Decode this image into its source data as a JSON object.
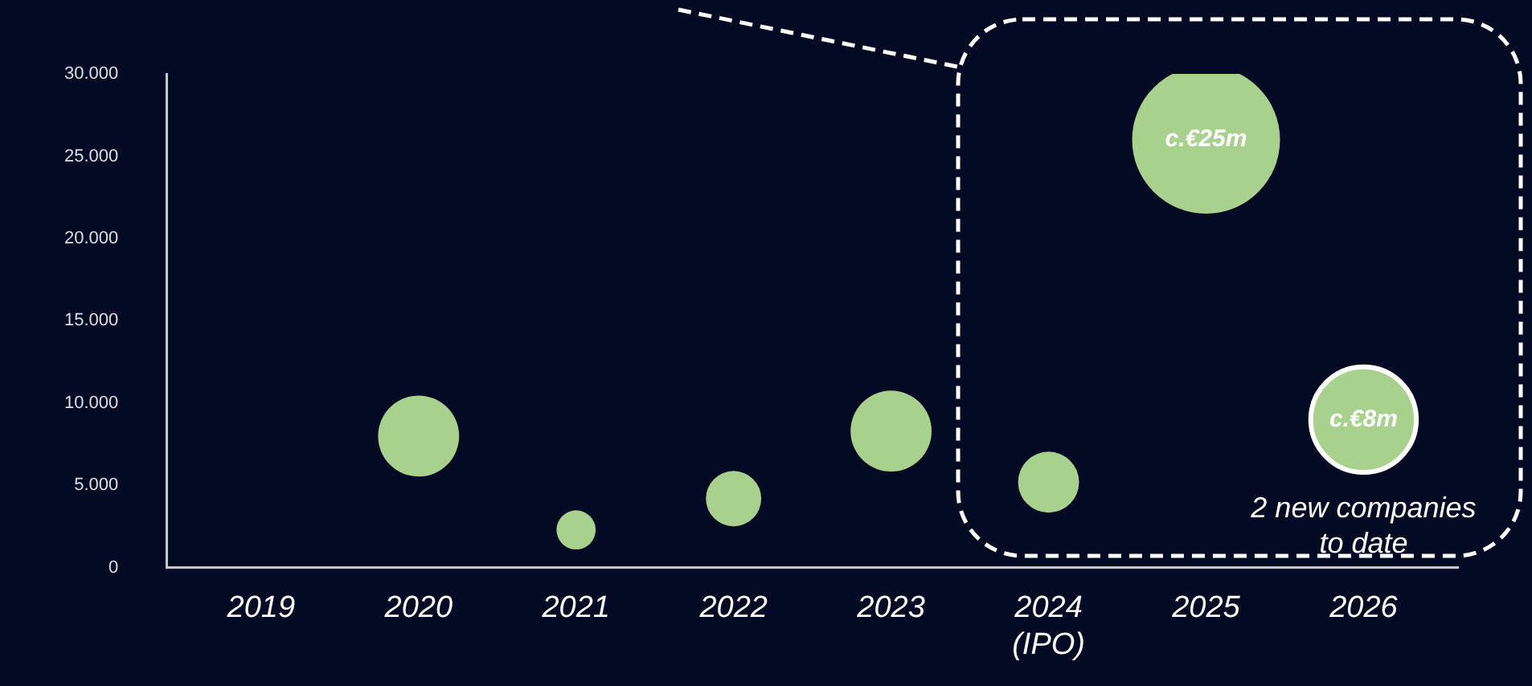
{
  "chart_data": {
    "type": "bubble",
    "categories": [
      "2019",
      "2020",
      "2021",
      "2022",
      "2023",
      "2024\n(IPO)",
      "2025",
      "2026"
    ],
    "values": [
      null,
      8000,
      2300,
      4200,
      8300,
      5200,
      26000,
      9000
    ],
    "sizes": [
      null,
      0.3,
      0.07,
      0.14,
      0.3,
      0.17,
      1,
      0.51
    ],
    "color": "#a9d18e",
    "relative": false,
    "ylim": [
      0,
      30000
    ],
    "yticks": [
      {
        "value": 0,
        "label": "0"
      },
      {
        "value": 5000,
        "label": "5.000"
      },
      {
        "value": 10000,
        "label": "10.000"
      },
      {
        "value": 15000,
        "label": "15.000"
      },
      {
        "value": 20000,
        "label": "20.000"
      },
      {
        "value": 25000,
        "label": "25.000"
      },
      {
        "value": 30000,
        "label": "30.000"
      }
    ],
    "annotations": [
      {
        "text": "c.€25m",
        "x": "2025",
        "y": 26000
      },
      {
        "text": "c.€8m",
        "x": "2026",
        "y": 9000
      },
      "2 new companies to date"
    ],
    "grid": false,
    "legend": false
  }
}
